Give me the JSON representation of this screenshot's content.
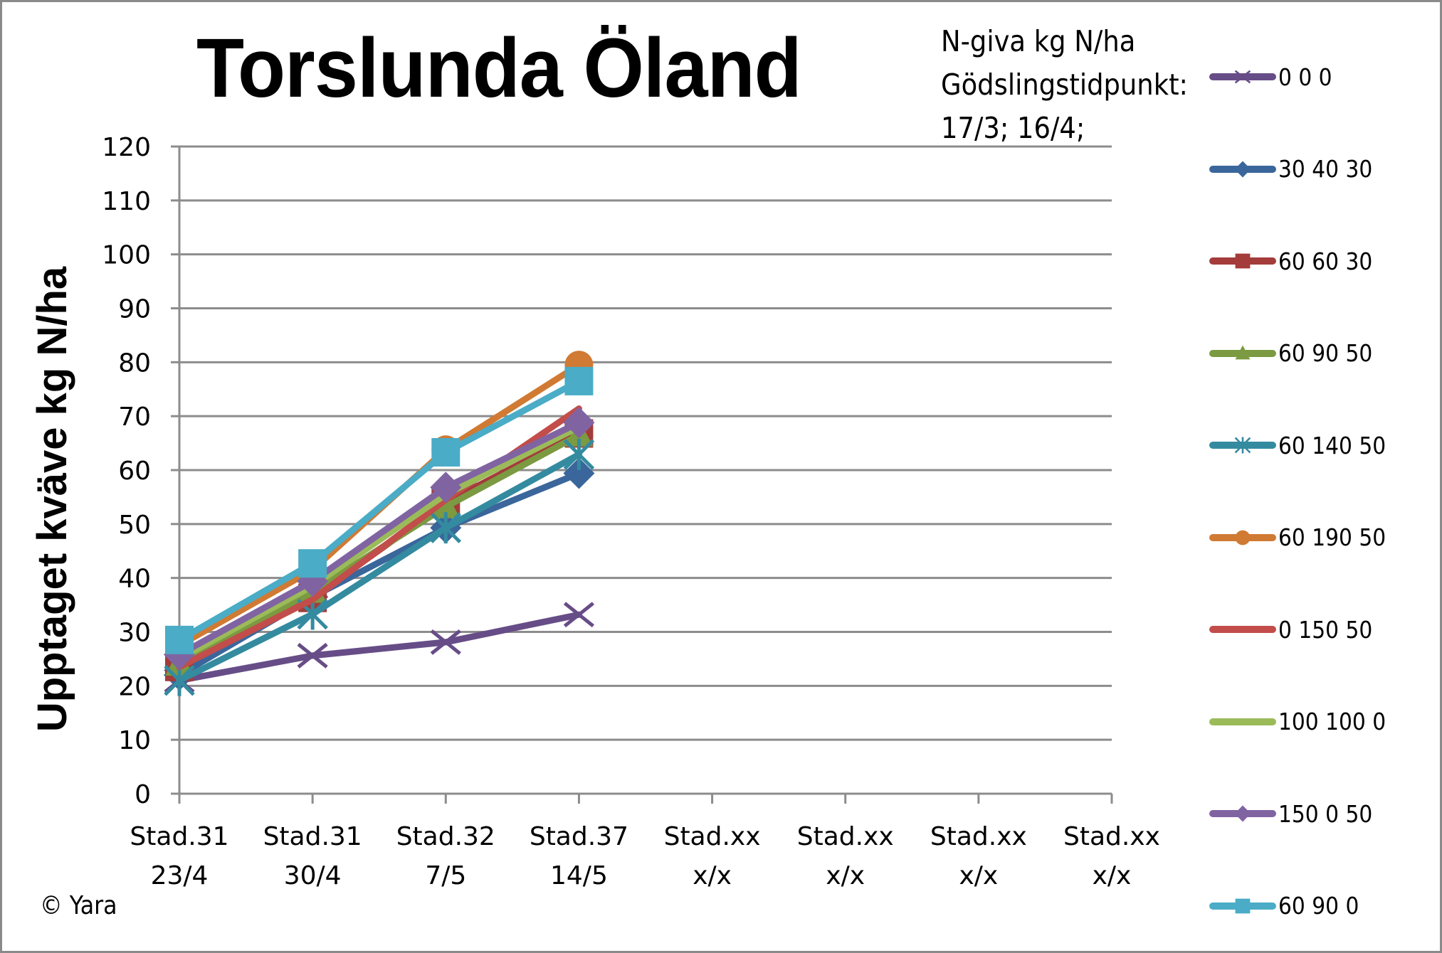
{
  "header": {
    "title": "Torslunda Öland",
    "note_lines": [
      "N-giva kg N/ha",
      "Gödslingstidpunkt:",
      "17/3; 16/4;"
    ]
  },
  "footer": {
    "copyright": "© Yara"
  },
  "chart_data": {
    "type": "line",
    "title": "Torslunda Öland",
    "subtitle": "N-giva kg N/ha Gödslingstidpunkt: 17/3; 16/4;",
    "xlabel": "",
    "ylabel": "Upptaget kväve kg N/ha",
    "ylim": [
      0,
      120
    ],
    "yticks": [
      0,
      10,
      20,
      30,
      40,
      50,
      60,
      70,
      80,
      90,
      100,
      110,
      120
    ],
    "grid": true,
    "legend_position": "right",
    "categories": [
      [
        "Stad.31",
        "23/4"
      ],
      [
        "Stad.31",
        "30/4"
      ],
      [
        "Stad.32",
        "7/5"
      ],
      [
        "Stad.37",
        "14/5"
      ],
      [
        "Stad.xx",
        "x/x"
      ],
      [
        "Stad.xx",
        "x/x"
      ],
      [
        "Stad.xx",
        "x/x"
      ],
      [
        "Stad.xx",
        "x/x"
      ]
    ],
    "series": [
      {
        "name": "0 0 0",
        "color": "#674d87",
        "marker": "x",
        "values": [
          21.0,
          25.6,
          28.1,
          33.2,
          null,
          null,
          null,
          null
        ]
      },
      {
        "name": "30 40 30",
        "color": "#3a669b",
        "marker": "diamond",
        "values": [
          22.0,
          36.5,
          49.3,
          59.4,
          null,
          null,
          null,
          null
        ]
      },
      {
        "name": "60 60 30",
        "color": "#a33c3a",
        "marker": "square",
        "values": [
          23.5,
          36.3,
          54.0,
          66.8,
          null,
          null,
          null,
          null
        ]
      },
      {
        "name": "60 90 50",
        "color": "#7b9a41",
        "marker": "triangle",
        "values": [
          24.0,
          37.5,
          53.2,
          66.5,
          null,
          null,
          null,
          null
        ]
      },
      {
        "name": "60 140 50",
        "color": "#348ba0",
        "marker": "star",
        "values": [
          21.0,
          33.3,
          49.3,
          62.9,
          null,
          null,
          null,
          null
        ]
      },
      {
        "name": "60 190 50",
        "color": "#d07a33",
        "marker": "circle",
        "values": [
          27.5,
          41.5,
          63.8,
          79.5,
          null,
          null,
          null,
          null
        ]
      },
      {
        "name": "0 150 50",
        "color": "#c24d4a",
        "marker": "none",
        "values": [
          23.5,
          36.0,
          54.5,
          71.4,
          null,
          null,
          null,
          null
        ]
      },
      {
        "name": "100 100 0",
        "color": "#9bbb59",
        "marker": "none",
        "values": [
          25.0,
          38.5,
          55.5,
          68.0,
          null,
          null,
          null,
          null
        ]
      },
      {
        "name": "150 0 50",
        "color": "#8064a2",
        "marker": "diamond",
        "values": [
          25.8,
          39.4,
          56.8,
          68.8,
          null,
          null,
          null,
          null
        ]
      },
      {
        "name": "60 90 0",
        "color": "#4aacc6",
        "marker": "square",
        "values": [
          28.5,
          42.7,
          63.3,
          76.5,
          null,
          null,
          null,
          null
        ]
      }
    ]
  }
}
